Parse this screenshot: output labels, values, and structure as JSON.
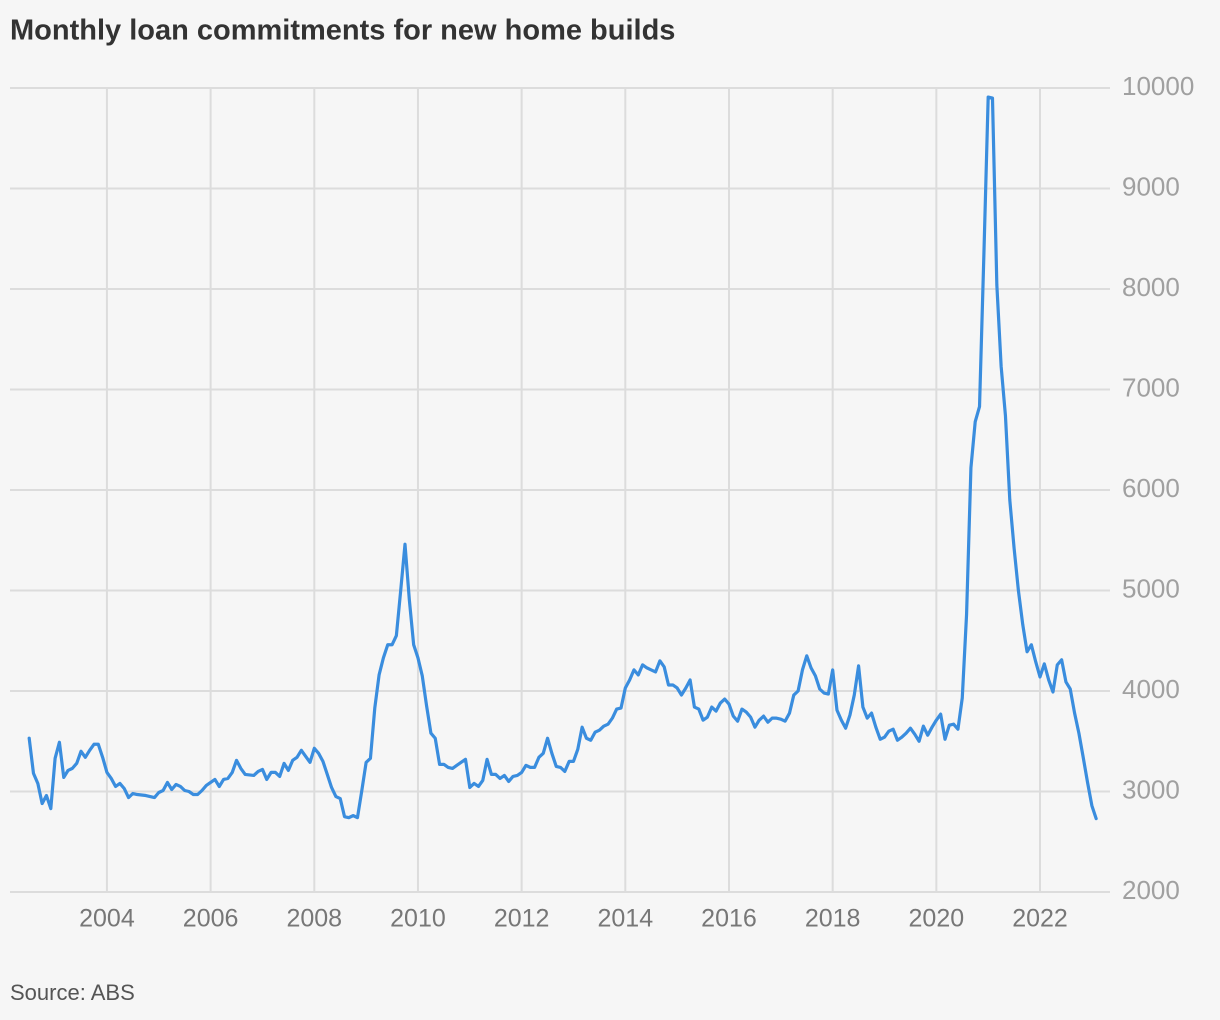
{
  "chart_data": {
    "type": "line",
    "title": "Monthly loan commitments for new home builds",
    "source": "Source: ABS",
    "xlim": [
      2002.13,
      2023.35
    ],
    "xticks": [
      2004,
      2006,
      2008,
      2010,
      2012,
      2014,
      2016,
      2018,
      2020,
      2022
    ],
    "ylim": [
      2000,
      10000
    ],
    "yticks": [
      2000,
      3000,
      4000,
      5000,
      6000,
      7000,
      8000,
      9000,
      10000
    ],
    "grid": true,
    "series": [
      {
        "color": "#3a8dde",
        "x": [
          2002.5,
          2002.583,
          2002.667,
          2002.75,
          2002.833,
          2002.917,
          2003,
          2003.083,
          2003.167,
          2003.25,
          2003.333,
          2003.417,
          2003.5,
          2003.583,
          2003.667,
          2003.75,
          2003.833,
          2003.917,
          2004,
          2004.083,
          2004.167,
          2004.25,
          2004.333,
          2004.417,
          2004.5,
          2004.583,
          2004.667,
          2004.75,
          2004.833,
          2004.917,
          2005,
          2005.083,
          2005.167,
          2005.25,
          2005.333,
          2005.417,
          2005.5,
          2005.583,
          2005.667,
          2005.75,
          2005.833,
          2005.917,
          2006,
          2006.083,
          2006.167,
          2006.25,
          2006.333,
          2006.417,
          2006.5,
          2006.583,
          2006.667,
          2006.75,
          2006.833,
          2006.917,
          2007,
          2007.083,
          2007.167,
          2007.25,
          2007.333,
          2007.417,
          2007.5,
          2007.583,
          2007.667,
          2007.75,
          2007.833,
          2007.917,
          2008,
          2008.083,
          2008.167,
          2008.25,
          2008.333,
          2008.417,
          2008.5,
          2008.583,
          2008.667,
          2008.75,
          2008.833,
          2008.917,
          2009,
          2009.083,
          2009.167,
          2009.25,
          2009.333,
          2009.417,
          2009.5,
          2009.583,
          2009.667,
          2009.75,
          2009.833,
          2009.917,
          2010,
          2010.083,
          2010.167,
          2010.25,
          2010.333,
          2010.417,
          2010.5,
          2010.583,
          2010.667,
          2010.75,
          2010.833,
          2010.917,
          2011,
          2011.083,
          2011.167,
          2011.25,
          2011.333,
          2011.417,
          2011.5,
          2011.583,
          2011.667,
          2011.75,
          2011.833,
          2011.917,
          2012,
          2012.083,
          2012.167,
          2012.25,
          2012.333,
          2012.417,
          2012.5,
          2012.583,
          2012.667,
          2012.75,
          2012.833,
          2012.917,
          2013,
          2013.083,
          2013.167,
          2013.25,
          2013.333,
          2013.417,
          2013.5,
          2013.583,
          2013.667,
          2013.75,
          2013.833,
          2013.917,
          2014,
          2014.083,
          2014.167,
          2014.25,
          2014.333,
          2014.417,
          2014.5,
          2014.583,
          2014.667,
          2014.75,
          2014.833,
          2014.917,
          2015,
          2015.083,
          2015.167,
          2015.25,
          2015.333,
          2015.417,
          2015.5,
          2015.583,
          2015.667,
          2015.75,
          2015.833,
          2015.917,
          2016,
          2016.083,
          2016.167,
          2016.25,
          2016.333,
          2016.417,
          2016.5,
          2016.583,
          2016.667,
          2016.75,
          2016.833,
          2016.917,
          2017,
          2017.083,
          2017.167,
          2017.25,
          2017.333,
          2017.417,
          2017.5,
          2017.583,
          2017.667,
          2017.75,
          2017.833,
          2017.917,
          2018,
          2018.083,
          2018.167,
          2018.25,
          2018.333,
          2018.417,
          2018.5,
          2018.583,
          2018.667,
          2018.75,
          2018.833,
          2018.917,
          2019,
          2019.083,
          2019.167,
          2019.25,
          2019.333,
          2019.417,
          2019.5,
          2019.583,
          2019.667,
          2019.75,
          2019.833,
          2019.917,
          2020,
          2020.083,
          2020.167,
          2020.25,
          2020.333,
          2020.417,
          2020.5,
          2020.583,
          2020.667,
          2020.75,
          2020.833,
          2020.917,
          2021,
          2021.083,
          2021.167,
          2021.25,
          2021.333,
          2021.417,
          2021.5,
          2021.583,
          2021.667,
          2021.75,
          2021.833,
          2021.917,
          2022,
          2022.083,
          2022.167,
          2022.25,
          2022.333,
          2022.417,
          2022.5,
          2022.583,
          2022.667,
          2022.75,
          2022.833,
          2022.917,
          2023,
          2023.083
        ],
        "values": [
          3530,
          3180,
          3080,
          2880,
          2960,
          2830,
          3330,
          3490,
          3140,
          3210,
          3230,
          3280,
          3400,
          3340,
          3410,
          3470,
          3470,
          3340,
          3190,
          3130,
          3050,
          3080,
          3030,
          2940,
          2980,
          2970,
          2965,
          2960,
          2950,
          2940,
          2990,
          3010,
          3090,
          3020,
          3070,
          3050,
          3010,
          3000,
          2970,
          2970,
          3010,
          3060,
          3090,
          3120,
          3050,
          3120,
          3130,
          3190,
          3310,
          3230,
          3170,
          3165,
          3160,
          3200,
          3220,
          3120,
          3190,
          3190,
          3150,
          3280,
          3210,
          3310,
          3340,
          3410,
          3350,
          3290,
          3430,
          3380,
          3300,
          3170,
          3040,
          2950,
          2930,
          2750,
          2740,
          2760,
          2740,
          3010,
          3290,
          3330,
          3830,
          4160,
          4330,
          4460,
          4460,
          4550,
          5000,
          5460,
          4910,
          4460,
          4330,
          4150,
          3850,
          3580,
          3530,
          3270,
          3270,
          3240,
          3230,
          3260,
          3290,
          3320,
          3040,
          3080,
          3050,
          3110,
          3320,
          3170,
          3170,
          3130,
          3160,
          3100,
          3150,
          3160,
          3190,
          3260,
          3240,
          3240,
          3340,
          3380,
          3530,
          3380,
          3250,
          3240,
          3200,
          3300,
          3300,
          3420,
          3640,
          3530,
          3510,
          3590,
          3610,
          3650,
          3670,
          3730,
          3820,
          3830,
          4030,
          4110,
          4210,
          4160,
          4260,
          4230,
          4210,
          4190,
          4300,
          4240,
          4060,
          4060,
          4030,
          3960,
          4030,
          4110,
          3840,
          3820,
          3710,
          3740,
          3840,
          3800,
          3880,
          3920,
          3870,
          3750,
          3700,
          3820,
          3790,
          3740,
          3640,
          3710,
          3750,
          3690,
          3730,
          3730,
          3720,
          3700,
          3780,
          3960,
          4000,
          4210,
          4350,
          4230,
          4150,
          4020,
          3980,
          3970,
          4210,
          3810,
          3710,
          3630,
          3760,
          3960,
          4250,
          3840,
          3730,
          3780,
          3640,
          3520,
          3540,
          3600,
          3620,
          3510,
          3540,
          3580,
          3630,
          3570,
          3500,
          3650,
          3560,
          3640,
          3710,
          3770,
          3520,
          3660,
          3670,
          3620,
          3930,
          4760,
          6220,
          6680,
          6830,
          8340,
          9910,
          9900,
          8040,
          7230,
          6740,
          5900,
          5420,
          5000,
          4660,
          4390,
          4460,
          4290,
          4140,
          4270,
          4110,
          3990,
          4260,
          4310,
          4090,
          4020,
          3780,
          3580,
          3340,
          3090,
          2860,
          2730
        ]
      }
    ]
  }
}
